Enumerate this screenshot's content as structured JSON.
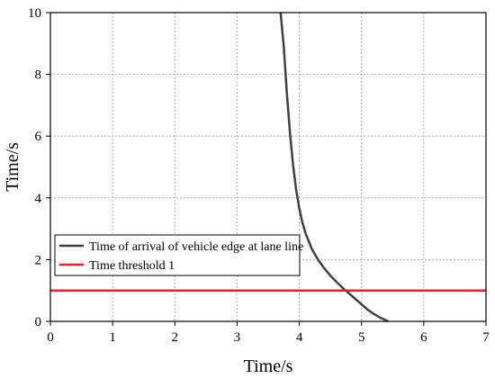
{
  "chart_data": {
    "type": "line",
    "xlabel": "Time/s",
    "ylabel": "Time/s",
    "xlim": [
      0,
      7
    ],
    "ylim": [
      0,
      10
    ],
    "xticks": [
      "0",
      "1",
      "2",
      "3",
      "4",
      "5",
      "6",
      "7"
    ],
    "yticks": [
      "0",
      "2",
      "4",
      "6",
      "8",
      "10"
    ],
    "grid": true,
    "legend_position": "left",
    "series": [
      {
        "name": "Time of arrival of vehicle edge at lane line",
        "color": "#404040",
        "x": [
          3.7,
          3.75,
          3.8,
          3.85,
          3.9,
          3.95,
          4.0,
          4.05,
          4.1,
          4.2,
          4.3,
          4.4,
          4.5,
          4.6,
          4.7,
          4.8,
          4.9,
          5.0,
          5.1,
          5.2,
          5.3,
          5.43
        ],
        "y": [
          10.0,
          8.9,
          7.4,
          6.1,
          5.05,
          4.25,
          3.65,
          3.2,
          2.85,
          2.35,
          2.0,
          1.72,
          1.48,
          1.27,
          1.08,
          0.9,
          0.73,
          0.55,
          0.38,
          0.24,
          0.12,
          0.0
        ]
      },
      {
        "name": "Time threshold 1",
        "color": "#e8202a",
        "x": [
          0,
          7
        ],
        "y": [
          1,
          1
        ]
      }
    ]
  }
}
